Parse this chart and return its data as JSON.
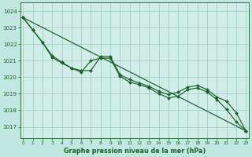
{
  "title": "Graphe pression niveau de la mer (hPa)",
  "bg_color": "#c0e8e0",
  "plot_bg_color": "#d0ede8",
  "grid_color": "#90bdb5",
  "line_color": "#1a5c2a",
  "x_labels": [
    "0",
    "1",
    "2",
    "3",
    "4",
    "5",
    "6",
    "7",
    "8",
    "9",
    "10",
    "11",
    "12",
    "13",
    "14",
    "15",
    "16",
    "17",
    "18",
    "19",
    "20",
    "21",
    "22",
    "23"
  ],
  "y_ticks": [
    1017,
    1018,
    1019,
    1020,
    1021,
    1022,
    1023,
    1024
  ],
  "ylim": [
    1016.3,
    1024.5
  ],
  "xlim": [
    -0.3,
    23.3
  ],
  "line1": [
    1023.6,
    1022.85,
    null,
    null,
    null,
    null,
    null,
    null,
    null,
    null,
    null,
    null,
    null,
    null,
    null,
    null,
    null,
    null,
    null,
    null,
    null,
    null,
    null,
    1016.75
  ],
  "line2": [
    1023.6,
    1022.85,
    1022.1,
    1021.2,
    1020.85,
    1020.55,
    1020.3,
    1021.0,
    1021.15,
    1021.15,
    1020.05,
    1019.7,
    1019.55,
    1019.35,
    1019.0,
    1018.75,
    1018.85,
    1019.25,
    1019.35,
    1019.1,
    1018.65,
    1018.05,
    1017.3,
    1016.75
  ],
  "line3": [
    1023.6,
    1022.85,
    1022.1,
    1021.3,
    1020.9,
    1020.55,
    1020.4,
    1020.4,
    1021.25,
    1021.25,
    1020.15,
    1019.85,
    1019.65,
    1019.45,
    1019.15,
    1018.95,
    1019.1,
    1019.4,
    1019.5,
    1019.25,
    1018.8,
    1018.55,
    1017.85,
    1016.75
  ]
}
